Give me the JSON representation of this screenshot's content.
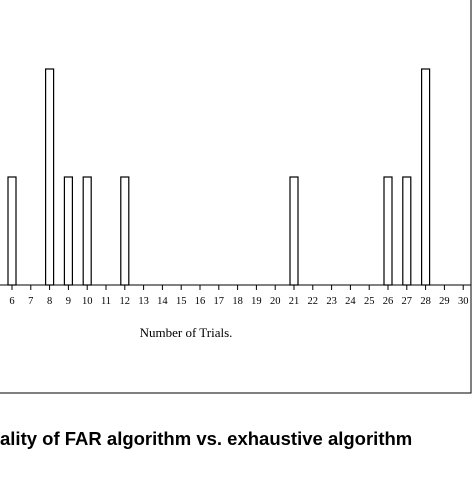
{
  "caption": "ality of FAR algorithm vs.  exhaustive algorithm",
  "chart_data": {
    "type": "bar",
    "xlabel": "Number  of  Trials.",
    "ylabel": "",
    "title": "",
    "categories": [
      "6",
      "7",
      "8",
      "9",
      "10",
      "11",
      "12",
      "13",
      "14",
      "15",
      "16",
      "17",
      "18",
      "19",
      "20",
      "21",
      "22",
      "23",
      "24",
      "25",
      "26",
      "27",
      "28",
      "29",
      "30"
    ],
    "values": [
      1,
      0,
      2,
      1,
      1,
      0,
      1,
      0,
      0,
      0,
      0,
      0,
      0,
      0,
      0,
      1,
      0,
      0,
      0,
      0,
      1,
      1,
      2,
      0,
      0
    ],
    "ylim": [
      0,
      2.3
    ],
    "grid": false,
    "legend": "none",
    "bar_color": "#ffffff",
    "bar_stroke": "#000000"
  }
}
